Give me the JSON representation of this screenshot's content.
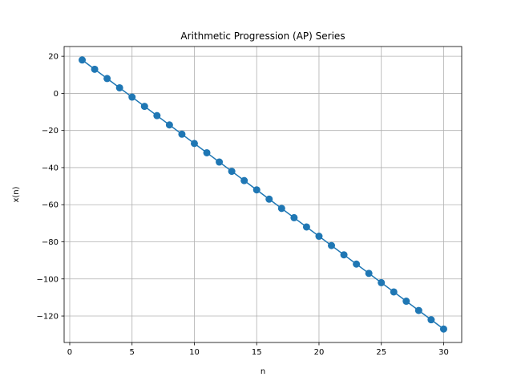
{
  "chart_data": {
    "type": "line",
    "title": "Arithmetic Progression (AP) Series",
    "xlabel": "n",
    "ylabel": "x(n)",
    "xlim": [
      -0.45,
      31.45
    ],
    "ylim": [
      -134.25,
      25.25
    ],
    "xticks": [
      0,
      5,
      10,
      15,
      20,
      25,
      30
    ],
    "yticks": [
      20,
      0,
      -20,
      -40,
      -60,
      -80,
      -100,
      -120
    ],
    "grid": true,
    "series": [
      {
        "color": "#1f77b4",
        "marker": "circle",
        "x": [
          1,
          2,
          3,
          4,
          5,
          6,
          7,
          8,
          9,
          10,
          11,
          12,
          13,
          14,
          15,
          16,
          17,
          18,
          19,
          20,
          21,
          22,
          23,
          24,
          25,
          26,
          27,
          28,
          29,
          30
        ],
        "y": [
          18,
          13,
          8,
          3,
          -2,
          -7,
          -12,
          -17,
          -22,
          -27,
          -32,
          -37,
          -42,
          -47,
          -52,
          -57,
          -62,
          -67,
          -72,
          -77,
          -82,
          -87,
          -92,
          -97,
          -102,
          -107,
          -112,
          -117,
          -122,
          -127
        ]
      }
    ]
  }
}
